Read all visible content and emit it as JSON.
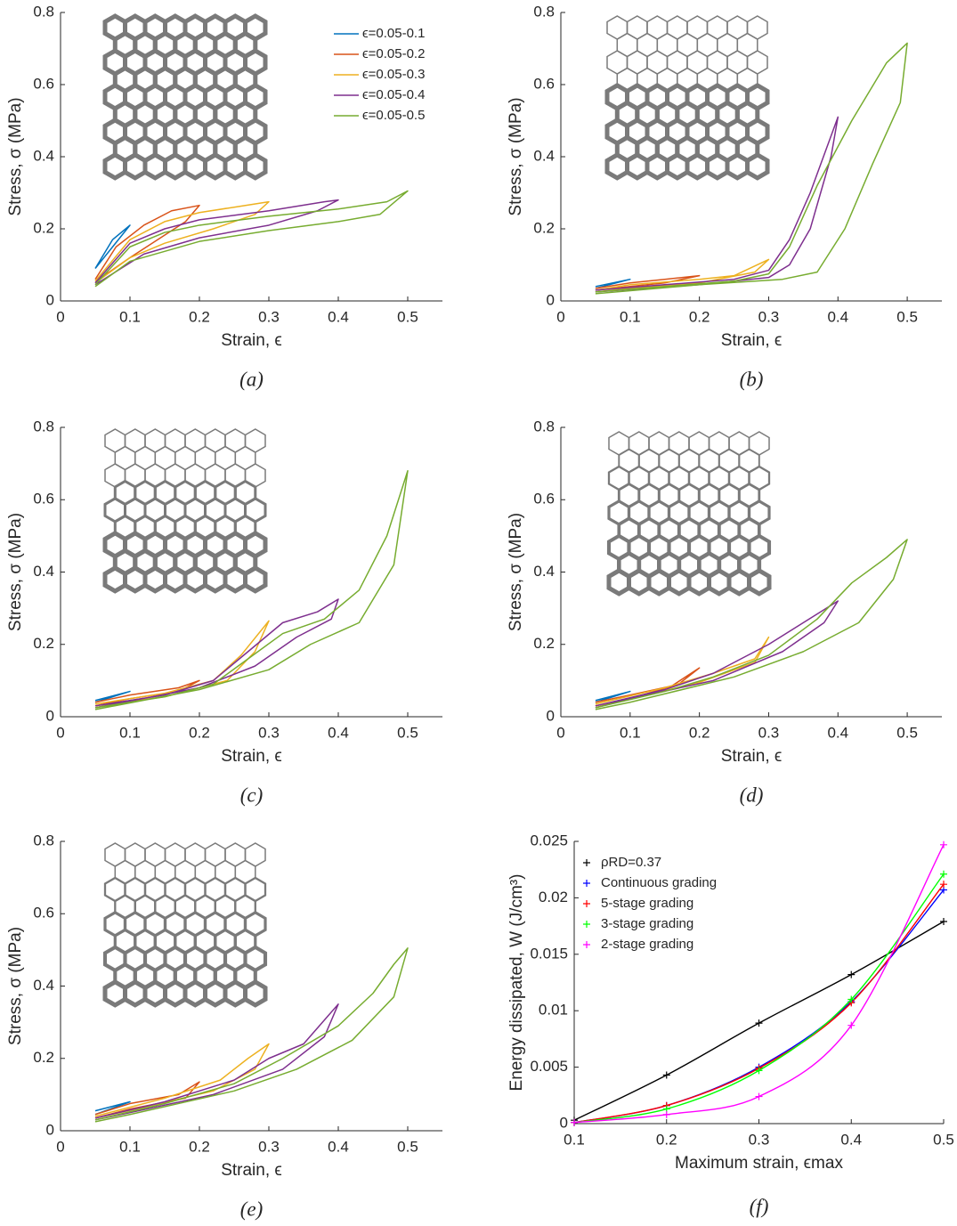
{
  "chart_data": [
    {
      "type": "line",
      "caption": "(a)",
      "xlabel": "Strain, ϵ",
      "ylabel": "Stress, σ (MPa)",
      "xlim": [
        0,
        0.55
      ],
      "ylim": [
        0,
        0.8
      ],
      "xticks": [
        0,
        0.1,
        0.2,
        0.3,
        0.4,
        0.5
      ],
      "yticks": [
        0,
        0.2,
        0.4,
        0.6,
        0.8
      ],
      "legend": "upper right",
      "series": [
        {
          "name": "ϵ=0.05-0.1",
          "color": "#0072bd",
          "x": [
            0.05,
            0.075,
            0.1,
            0.075,
            0.05
          ],
          "values": [
            0.09,
            0.15,
            0.21,
            0.17,
            0.09
          ]
        },
        {
          "name": "ϵ=0.05-0.2",
          "color": "#d95319",
          "x": [
            0.05,
            0.08,
            0.12,
            0.16,
            0.2,
            0.18,
            0.14,
            0.1,
            0.07,
            0.05
          ],
          "values": [
            0.06,
            0.15,
            0.21,
            0.25,
            0.265,
            0.22,
            0.17,
            0.12,
            0.08,
            0.055
          ]
        },
        {
          "name": "ϵ=0.05-0.3",
          "color": "#edb120",
          "x": [
            0.05,
            0.1,
            0.15,
            0.2,
            0.25,
            0.3,
            0.28,
            0.22,
            0.15,
            0.1,
            0.05
          ],
          "values": [
            0.055,
            0.17,
            0.22,
            0.245,
            0.26,
            0.275,
            0.24,
            0.2,
            0.16,
            0.12,
            0.05
          ]
        },
        {
          "name": "ϵ=0.05-0.4",
          "color": "#7e2f8e",
          "x": [
            0.05,
            0.1,
            0.15,
            0.2,
            0.3,
            0.38,
            0.4,
            0.37,
            0.3,
            0.2,
            0.12,
            0.05
          ],
          "values": [
            0.05,
            0.16,
            0.2,
            0.225,
            0.25,
            0.275,
            0.28,
            0.25,
            0.21,
            0.175,
            0.13,
            0.045
          ]
        },
        {
          "name": "ϵ=0.05-0.5",
          "color": "#77ac30",
          "x": [
            0.05,
            0.1,
            0.15,
            0.2,
            0.3,
            0.4,
            0.47,
            0.5,
            0.46,
            0.4,
            0.3,
            0.2,
            0.1,
            0.05
          ],
          "values": [
            0.045,
            0.15,
            0.19,
            0.21,
            0.235,
            0.255,
            0.275,
            0.305,
            0.24,
            0.22,
            0.195,
            0.165,
            0.11,
            0.04
          ]
        }
      ]
    },
    {
      "type": "line",
      "caption": "(b)",
      "xlabel": "Strain, ϵ",
      "ylabel": "Stress, σ (MPa)",
      "xlim": [
        0,
        0.55
      ],
      "ylim": [
        0,
        0.8
      ],
      "xticks": [
        0,
        0.1,
        0.2,
        0.3,
        0.4,
        0.5
      ],
      "yticks": [
        0,
        0.2,
        0.4,
        0.6,
        0.8
      ],
      "series": [
        {
          "color": "#0072bd",
          "x": [
            0.05,
            0.1,
            0.05
          ],
          "values": [
            0.04,
            0.06,
            0.035
          ]
        },
        {
          "color": "#d95319",
          "x": [
            0.05,
            0.1,
            0.15,
            0.2,
            0.15,
            0.1,
            0.05
          ],
          "values": [
            0.035,
            0.05,
            0.06,
            0.07,
            0.05,
            0.04,
            0.03
          ]
        },
        {
          "color": "#edb120",
          "x": [
            0.05,
            0.1,
            0.2,
            0.25,
            0.3,
            0.28,
            0.2,
            0.1,
            0.05
          ],
          "values": [
            0.03,
            0.045,
            0.06,
            0.07,
            0.115,
            0.08,
            0.05,
            0.035,
            0.025
          ]
        },
        {
          "color": "#7e2f8e",
          "x": [
            0.05,
            0.15,
            0.25,
            0.3,
            0.33,
            0.36,
            0.4,
            0.39,
            0.36,
            0.33,
            0.3,
            0.2,
            0.05
          ],
          "values": [
            0.03,
            0.045,
            0.06,
            0.085,
            0.17,
            0.3,
            0.51,
            0.4,
            0.2,
            0.1,
            0.065,
            0.045,
            0.025
          ]
        },
        {
          "color": "#77ac30",
          "x": [
            0.05,
            0.15,
            0.25,
            0.3,
            0.33,
            0.37,
            0.42,
            0.47,
            0.5,
            0.49,
            0.45,
            0.41,
            0.37,
            0.32,
            0.2,
            0.05
          ],
          "values": [
            0.025,
            0.04,
            0.055,
            0.075,
            0.15,
            0.32,
            0.5,
            0.66,
            0.715,
            0.55,
            0.38,
            0.2,
            0.08,
            0.06,
            0.045,
            0.02
          ]
        }
      ]
    },
    {
      "type": "line",
      "caption": "(c)",
      "xlabel": "Strain, ϵ",
      "ylabel": "Stress, σ (MPa)",
      "xlim": [
        0,
        0.55
      ],
      "ylim": [
        0,
        0.8
      ],
      "xticks": [
        0,
        0.1,
        0.2,
        0.3,
        0.4,
        0.5
      ],
      "yticks": [
        0,
        0.2,
        0.4,
        0.6,
        0.8
      ],
      "series": [
        {
          "color": "#0072bd",
          "x": [
            0.05,
            0.1,
            0.05
          ],
          "values": [
            0.045,
            0.07,
            0.04
          ]
        },
        {
          "color": "#d95319",
          "x": [
            0.05,
            0.1,
            0.17,
            0.2,
            0.17,
            0.1,
            0.05
          ],
          "values": [
            0.04,
            0.06,
            0.08,
            0.1,
            0.07,
            0.05,
            0.03
          ]
        },
        {
          "color": "#edb120",
          "x": [
            0.05,
            0.15,
            0.22,
            0.26,
            0.3,
            0.28,
            0.24,
            0.15,
            0.05
          ],
          "values": [
            0.035,
            0.065,
            0.1,
            0.17,
            0.265,
            0.18,
            0.1,
            0.055,
            0.03
          ]
        },
        {
          "color": "#7e2f8e",
          "x": [
            0.05,
            0.15,
            0.22,
            0.27,
            0.32,
            0.37,
            0.4,
            0.39,
            0.34,
            0.28,
            0.2,
            0.05
          ],
          "values": [
            0.03,
            0.06,
            0.1,
            0.18,
            0.26,
            0.29,
            0.325,
            0.27,
            0.22,
            0.14,
            0.08,
            0.025
          ]
        },
        {
          "color": "#77ac30",
          "x": [
            0.05,
            0.15,
            0.22,
            0.27,
            0.32,
            0.38,
            0.43,
            0.47,
            0.5,
            0.48,
            0.43,
            0.36,
            0.3,
            0.2,
            0.05
          ],
          "values": [
            0.025,
            0.055,
            0.09,
            0.16,
            0.23,
            0.27,
            0.35,
            0.5,
            0.68,
            0.42,
            0.26,
            0.2,
            0.13,
            0.075,
            0.02
          ]
        }
      ]
    },
    {
      "type": "line",
      "caption": "(d)",
      "xlabel": "Strain, ϵ",
      "ylabel": "Stress, σ (MPa)",
      "xlim": [
        0,
        0.55
      ],
      "ylim": [
        0,
        0.8
      ],
      "xticks": [
        0,
        0.1,
        0.2,
        0.3,
        0.4,
        0.5
      ],
      "yticks": [
        0,
        0.2,
        0.4,
        0.6,
        0.8
      ],
      "series": [
        {
          "color": "#0072bd",
          "x": [
            0.05,
            0.1,
            0.05
          ],
          "values": [
            0.045,
            0.07,
            0.04
          ]
        },
        {
          "color": "#d95319",
          "x": [
            0.05,
            0.1,
            0.16,
            0.2,
            0.17,
            0.1,
            0.05
          ],
          "values": [
            0.04,
            0.06,
            0.085,
            0.135,
            0.09,
            0.05,
            0.03
          ]
        },
        {
          "color": "#edb120",
          "x": [
            0.05,
            0.15,
            0.22,
            0.28,
            0.3,
            0.28,
            0.2,
            0.1,
            0.05
          ],
          "values": [
            0.035,
            0.08,
            0.12,
            0.16,
            0.22,
            0.15,
            0.095,
            0.05,
            0.03
          ]
        },
        {
          "color": "#7e2f8e",
          "x": [
            0.05,
            0.15,
            0.22,
            0.3,
            0.35,
            0.4,
            0.38,
            0.32,
            0.22,
            0.1,
            0.05
          ],
          "values": [
            0.03,
            0.075,
            0.12,
            0.2,
            0.26,
            0.32,
            0.26,
            0.18,
            0.1,
            0.05,
            0.025
          ]
        },
        {
          "color": "#77ac30",
          "x": [
            0.05,
            0.15,
            0.22,
            0.3,
            0.37,
            0.42,
            0.47,
            0.5,
            0.48,
            0.43,
            0.35,
            0.25,
            0.1,
            0.05
          ],
          "values": [
            0.025,
            0.07,
            0.11,
            0.17,
            0.27,
            0.37,
            0.44,
            0.49,
            0.38,
            0.26,
            0.18,
            0.11,
            0.04,
            0.02
          ]
        }
      ]
    },
    {
      "type": "line",
      "caption": "(e)",
      "xlabel": "Strain, ϵ",
      "ylabel": "Stress, σ (MPa)",
      "xlim": [
        0,
        0.55
      ],
      "ylim": [
        0,
        0.8
      ],
      "xticks": [
        0,
        0.1,
        0.2,
        0.3,
        0.4,
        0.5
      ],
      "yticks": [
        0,
        0.2,
        0.4,
        0.6,
        0.8
      ],
      "series": [
        {
          "color": "#0072bd",
          "x": [
            0.05,
            0.1,
            0.05
          ],
          "values": [
            0.055,
            0.08,
            0.045
          ]
        },
        {
          "color": "#d95319",
          "x": [
            0.05,
            0.1,
            0.17,
            0.2,
            0.18,
            0.1,
            0.05
          ],
          "values": [
            0.045,
            0.075,
            0.1,
            0.135,
            0.09,
            0.06,
            0.035
          ]
        },
        {
          "color": "#edb120",
          "x": [
            0.05,
            0.15,
            0.23,
            0.27,
            0.3,
            0.28,
            0.22,
            0.12,
            0.05
          ],
          "values": [
            0.04,
            0.09,
            0.14,
            0.2,
            0.24,
            0.17,
            0.11,
            0.065,
            0.035
          ]
        },
        {
          "color": "#7e2f8e",
          "x": [
            0.05,
            0.15,
            0.25,
            0.3,
            0.35,
            0.4,
            0.38,
            0.32,
            0.22,
            0.1,
            0.05
          ],
          "values": [
            0.035,
            0.08,
            0.14,
            0.2,
            0.24,
            0.35,
            0.26,
            0.17,
            0.1,
            0.05,
            0.03
          ]
        },
        {
          "color": "#77ac30",
          "x": [
            0.05,
            0.15,
            0.25,
            0.32,
            0.4,
            0.45,
            0.48,
            0.5,
            0.48,
            0.42,
            0.34,
            0.25,
            0.1,
            0.05
          ],
          "values": [
            0.03,
            0.075,
            0.13,
            0.2,
            0.29,
            0.38,
            0.46,
            0.505,
            0.37,
            0.25,
            0.17,
            0.11,
            0.045,
            0.025
          ]
        }
      ]
    },
    {
      "type": "line",
      "marker": "+",
      "caption": "(f)",
      "xlabel": "Maximum strain, ϵmax",
      "ylabel": "Energy dissipated, W (J/cm³)",
      "xlim": [
        0.1,
        0.5
      ],
      "ylim": [
        0,
        0.025
      ],
      "xticks": [
        0.1,
        0.2,
        0.3,
        0.4,
        0.5
      ],
      "yticks": [
        0,
        0.005,
        0.01,
        0.015,
        0.02,
        0.025
      ],
      "legend": "upper left",
      "series": [
        {
          "name": "ρRD=0.37",
          "color": "#000000",
          "x": [
            0.1,
            0.2,
            0.3,
            0.4,
            0.5
          ],
          "values": [
            0.0003,
            0.0043,
            0.0089,
            0.0132,
            0.0179
          ]
        },
        {
          "name": "Continuous grading",
          "color": "#0000ff",
          "x": [
            0.1,
            0.2,
            0.3,
            0.4,
            0.5
          ],
          "values": [
            0.0001,
            0.0016,
            0.005,
            0.0108,
            0.0207
          ]
        },
        {
          "name": "5-stage grading",
          "color": "#ff0000",
          "x": [
            0.1,
            0.2,
            0.3,
            0.4,
            0.5
          ],
          "values": [
            0.0001,
            0.0016,
            0.0049,
            0.0107,
            0.0212
          ]
        },
        {
          "name": "3-stage grading",
          "color": "#00ff00",
          "x": [
            0.1,
            0.2,
            0.3,
            0.4,
            0.5
          ],
          "values": [
            0.0001,
            0.0013,
            0.0047,
            0.011,
            0.0221
          ]
        },
        {
          "name": "2-stage grading",
          "color": "#ff00ff",
          "x": [
            0.1,
            0.2,
            0.3,
            0.4,
            0.5
          ],
          "values": [
            0.0001,
            0.0008,
            0.0024,
            0.0087,
            0.0247
          ]
        }
      ]
    }
  ]
}
